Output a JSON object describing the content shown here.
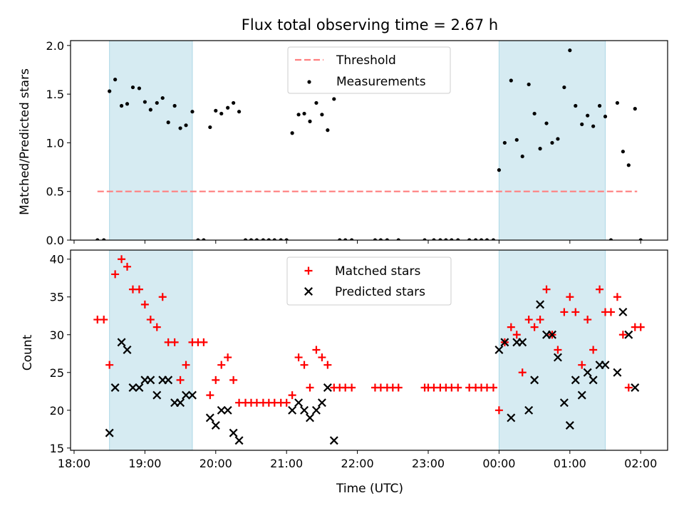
{
  "chart_data": {
    "type": "scatter",
    "title": "Flux total observing time = 2.67 h",
    "xlabel": "Time (UTC)",
    "xtick_labels": [
      "18:00",
      "19:00",
      "20:00",
      "21:00",
      "22:00",
      "23:00",
      "00:00",
      "01:00",
      "02:00"
    ],
    "xtick_hours": [
      18,
      19,
      20,
      21,
      22,
      23,
      24,
      25,
      26
    ],
    "xlim": [
      17.95,
      26.38
    ],
    "shaded_spans": [
      [
        18.5,
        19.67
      ],
      [
        24.0,
        25.5
      ]
    ],
    "shade_color": "#add8e6",
    "top": {
      "ylabel": "Matched/Predicted stars",
      "ylim": [
        0,
        2.05
      ],
      "yticks": [
        0,
        0.5,
        1.0,
        1.5,
        2.0
      ],
      "ytick_labels": [
        "0.0",
        "0.5",
        "1.0",
        "1.5",
        "2.0"
      ],
      "legend_position": "upper center",
      "threshold": {
        "name": "Threshold",
        "y": 0.5,
        "x_range": [
          18.33,
          25.95
        ],
        "color": "#ff7f7f"
      },
      "measurements": {
        "name": "Measurements",
        "color": "#000000",
        "points": [
          [
            18.33,
            0
          ],
          [
            18.42,
            0
          ],
          [
            18.5,
            1.53
          ],
          [
            18.58,
            1.65
          ],
          [
            18.67,
            1.38
          ],
          [
            18.75,
            1.4
          ],
          [
            18.83,
            1.57
          ],
          [
            18.92,
            1.56
          ],
          [
            19.0,
            1.42
          ],
          [
            19.08,
            1.34
          ],
          [
            19.17,
            1.41
          ],
          [
            19.25,
            1.46
          ],
          [
            19.33,
            1.21
          ],
          [
            19.42,
            1.38
          ],
          [
            19.5,
            1.15
          ],
          [
            19.58,
            1.18
          ],
          [
            19.67,
            1.32
          ],
          [
            19.75,
            0
          ],
          [
            19.83,
            0
          ],
          [
            19.92,
            1.16
          ],
          [
            20.0,
            1.33
          ],
          [
            20.08,
            1.3
          ],
          [
            20.17,
            1.36
          ],
          [
            20.25,
            1.41
          ],
          [
            20.33,
            1.32
          ],
          [
            20.42,
            0
          ],
          [
            20.5,
            0
          ],
          [
            20.58,
            0
          ],
          [
            20.67,
            0
          ],
          [
            20.75,
            0
          ],
          [
            20.83,
            0
          ],
          [
            20.92,
            0
          ],
          [
            21.0,
            0
          ],
          [
            21.08,
            1.1
          ],
          [
            21.17,
            1.29
          ],
          [
            21.25,
            1.3
          ],
          [
            21.33,
            1.22
          ],
          [
            21.42,
            1.41
          ],
          [
            21.5,
            1.29
          ],
          [
            21.58,
            1.13
          ],
          [
            21.67,
            1.45
          ],
          [
            21.75,
            0
          ],
          [
            21.83,
            0
          ],
          [
            21.92,
            0
          ],
          [
            22.25,
            0
          ],
          [
            22.33,
            0
          ],
          [
            22.42,
            0
          ],
          [
            22.58,
            0
          ],
          [
            22.95,
            0
          ],
          [
            23.08,
            0
          ],
          [
            23.17,
            0
          ],
          [
            23.25,
            0
          ],
          [
            23.33,
            0
          ],
          [
            23.42,
            0
          ],
          [
            23.58,
            0
          ],
          [
            23.67,
            0
          ],
          [
            23.75,
            0
          ],
          [
            23.83,
            0
          ],
          [
            23.92,
            0
          ],
          [
            24.0,
            0.72
          ],
          [
            24.08,
            1.0
          ],
          [
            24.17,
            1.64
          ],
          [
            24.25,
            1.03
          ],
          [
            24.33,
            0.86
          ],
          [
            24.42,
            1.6
          ],
          [
            24.5,
            1.3
          ],
          [
            24.58,
            0.94
          ],
          [
            24.67,
            1.2
          ],
          [
            24.75,
            1.0
          ],
          [
            24.83,
            1.04
          ],
          [
            24.92,
            1.57
          ],
          [
            25.0,
            1.95
          ],
          [
            25.08,
            1.38
          ],
          [
            25.17,
            1.19
          ],
          [
            25.25,
            1.28
          ],
          [
            25.33,
            1.17
          ],
          [
            25.42,
            1.38
          ],
          [
            25.5,
            1.27
          ],
          [
            25.58,
            0
          ],
          [
            25.67,
            1.41
          ],
          [
            25.75,
            0.91
          ],
          [
            25.83,
            0.77
          ],
          [
            25.92,
            1.35
          ],
          [
            26.0,
            0
          ]
        ]
      }
    },
    "bottom": {
      "ylabel": "Count",
      "ylim": [
        14.7,
        41.2
      ],
      "yticks": [
        15,
        20,
        25,
        30,
        35,
        40
      ],
      "ytick_labels": [
        "15",
        "20",
        "25",
        "30",
        "35",
        "40"
      ],
      "legend_position": "upper center",
      "series": [
        {
          "name": "Matched stars",
          "marker": "plus",
          "color": "#ff0000",
          "points": [
            [
              18.33,
              32
            ],
            [
              18.42,
              32
            ],
            [
              18.5,
              26
            ],
            [
              18.58,
              38
            ],
            [
              18.67,
              40
            ],
            [
              18.75,
              39
            ],
            [
              18.83,
              36
            ],
            [
              18.92,
              36
            ],
            [
              19.0,
              34
            ],
            [
              19.08,
              32
            ],
            [
              19.17,
              31
            ],
            [
              19.25,
              35
            ],
            [
              19.33,
              29
            ],
            [
              19.42,
              29
            ],
            [
              19.5,
              24
            ],
            [
              19.58,
              26
            ],
            [
              19.67,
              29
            ],
            [
              19.75,
              29
            ],
            [
              19.83,
              29
            ],
            [
              19.92,
              22
            ],
            [
              20.0,
              24
            ],
            [
              20.08,
              26
            ],
            [
              20.17,
              27
            ],
            [
              20.25,
              24
            ],
            [
              20.33,
              21
            ],
            [
              20.42,
              21
            ],
            [
              20.5,
              21
            ],
            [
              20.58,
              21
            ],
            [
              20.67,
              21
            ],
            [
              20.75,
              21
            ],
            [
              20.83,
              21
            ],
            [
              20.92,
              21
            ],
            [
              21.0,
              21
            ],
            [
              21.08,
              22
            ],
            [
              21.17,
              27
            ],
            [
              21.25,
              26
            ],
            [
              21.33,
              23
            ],
            [
              21.42,
              28
            ],
            [
              21.5,
              27
            ],
            [
              21.58,
              26
            ],
            [
              21.67,
              23
            ],
            [
              21.75,
              23
            ],
            [
              21.83,
              23
            ],
            [
              21.92,
              23
            ],
            [
              22.25,
              23
            ],
            [
              22.33,
              23
            ],
            [
              22.42,
              23
            ],
            [
              22.5,
              23
            ],
            [
              22.58,
              23
            ],
            [
              22.95,
              23
            ],
            [
              23.0,
              23
            ],
            [
              23.08,
              23
            ],
            [
              23.17,
              23
            ],
            [
              23.25,
              23
            ],
            [
              23.33,
              23
            ],
            [
              23.42,
              23
            ],
            [
              23.58,
              23
            ],
            [
              23.67,
              23
            ],
            [
              23.75,
              23
            ],
            [
              23.83,
              23
            ],
            [
              23.92,
              23
            ],
            [
              24.0,
              20
            ],
            [
              24.08,
              29
            ],
            [
              24.17,
              31
            ],
            [
              24.25,
              30
            ],
            [
              24.33,
              25
            ],
            [
              24.42,
              32
            ],
            [
              24.5,
              31
            ],
            [
              24.58,
              32
            ],
            [
              24.67,
              36
            ],
            [
              24.75,
              30
            ],
            [
              24.83,
              28
            ],
            [
              24.92,
              33
            ],
            [
              25.0,
              35
            ],
            [
              25.08,
              33
            ],
            [
              25.17,
              26
            ],
            [
              25.25,
              32
            ],
            [
              25.33,
              28
            ],
            [
              25.42,
              36
            ],
            [
              25.5,
              33
            ],
            [
              25.58,
              33
            ],
            [
              25.67,
              35
            ],
            [
              25.75,
              30
            ],
            [
              25.83,
              23
            ],
            [
              25.92,
              31
            ],
            [
              26.0,
              31
            ]
          ]
        },
        {
          "name": "Predicted stars",
          "marker": "x",
          "color": "#000000",
          "points": [
            [
              18.5,
              17
            ],
            [
              18.58,
              23
            ],
            [
              18.67,
              29
            ],
            [
              18.75,
              28
            ],
            [
              18.83,
              23
            ],
            [
              18.92,
              23
            ],
            [
              19.0,
              24
            ],
            [
              19.08,
              24
            ],
            [
              19.17,
              22
            ],
            [
              19.25,
              24
            ],
            [
              19.33,
              24
            ],
            [
              19.42,
              21
            ],
            [
              19.5,
              21
            ],
            [
              19.58,
              22
            ],
            [
              19.67,
              22
            ],
            [
              19.92,
              19
            ],
            [
              20.0,
              18
            ],
            [
              20.08,
              20
            ],
            [
              20.17,
              20
            ],
            [
              20.25,
              17
            ],
            [
              20.33,
              16
            ],
            [
              21.08,
              20
            ],
            [
              21.17,
              21
            ],
            [
              21.25,
              20
            ],
            [
              21.33,
              19
            ],
            [
              21.42,
              20
            ],
            [
              21.5,
              21
            ],
            [
              21.58,
              23
            ],
            [
              21.67,
              16
            ],
            [
              24.0,
              28
            ],
            [
              24.08,
              29
            ],
            [
              24.17,
              19
            ],
            [
              24.25,
              29
            ],
            [
              24.33,
              29
            ],
            [
              24.42,
              20
            ],
            [
              24.5,
              24
            ],
            [
              24.58,
              34
            ],
            [
              24.67,
              30
            ],
            [
              24.75,
              30
            ],
            [
              24.83,
              27
            ],
            [
              24.92,
              21
            ],
            [
              25.0,
              18
            ],
            [
              25.08,
              24
            ],
            [
              25.17,
              22
            ],
            [
              25.25,
              25
            ],
            [
              25.33,
              24
            ],
            [
              25.42,
              26
            ],
            [
              25.5,
              26
            ],
            [
              25.67,
              25
            ],
            [
              25.75,
              33
            ],
            [
              25.83,
              30
            ],
            [
              25.92,
              23
            ]
          ]
        }
      ]
    }
  }
}
